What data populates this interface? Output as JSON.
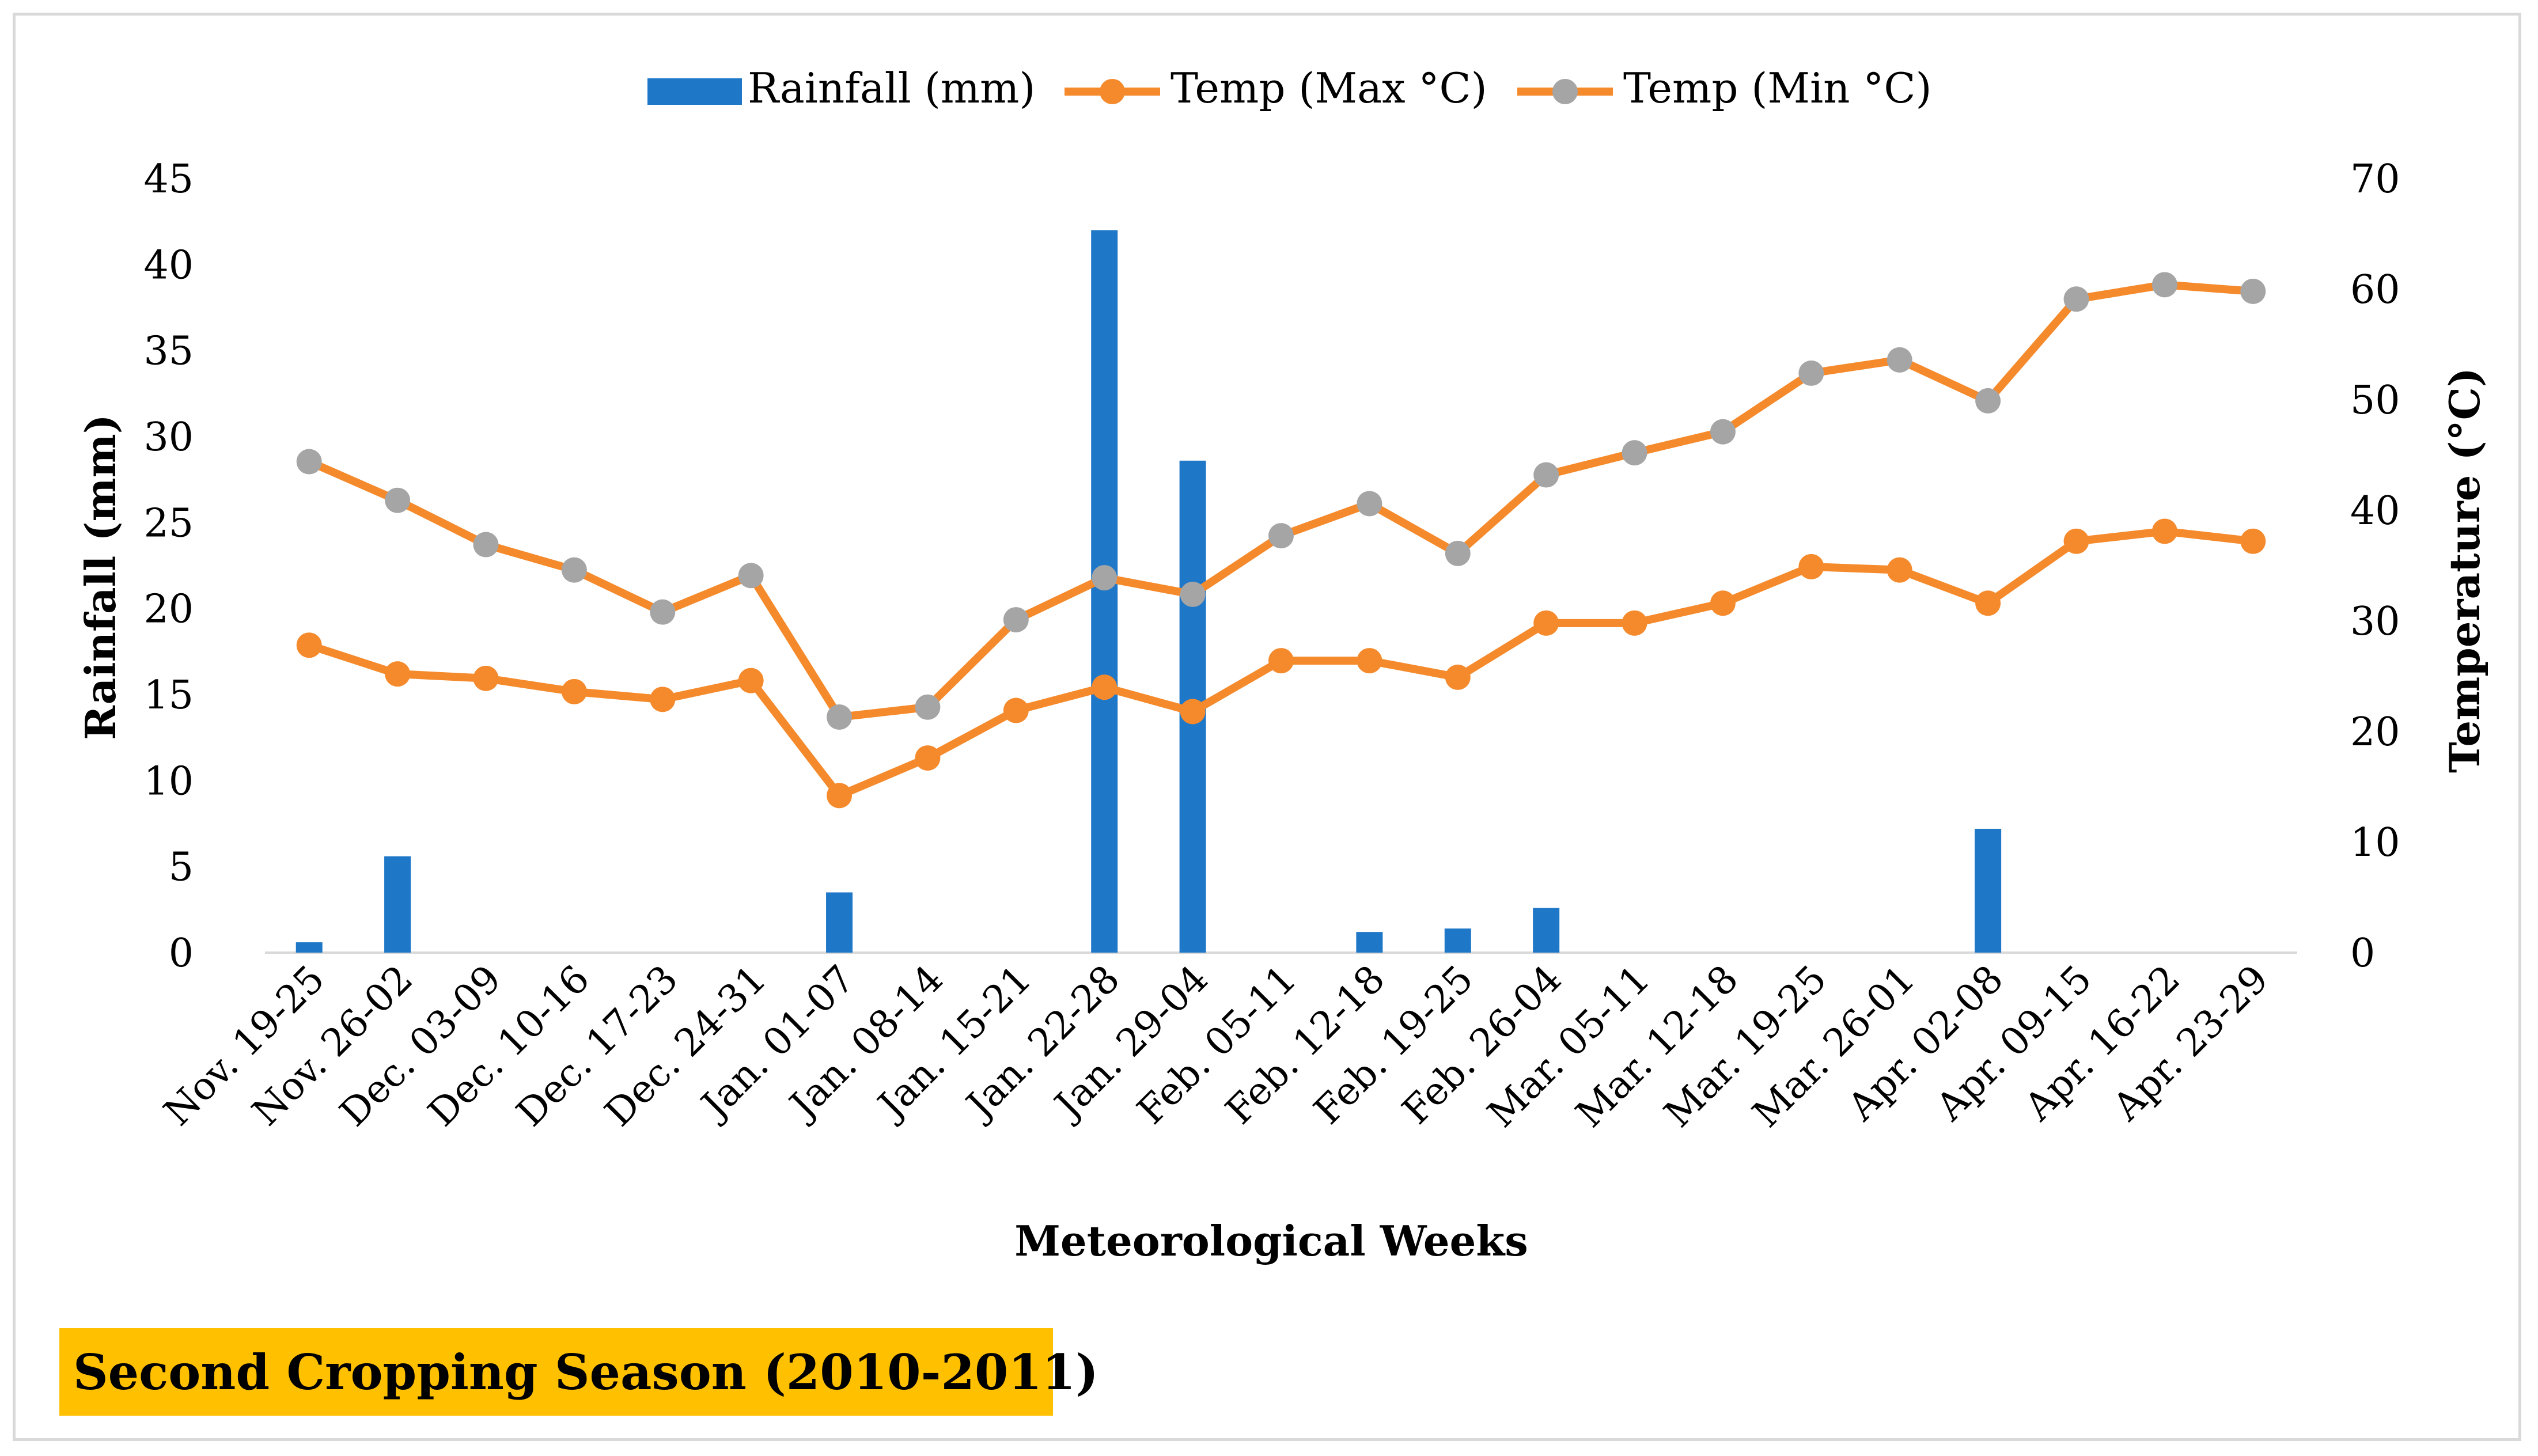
{
  "colors": {
    "rainfall": "#1f77c8",
    "max_line": "#f58a2c",
    "min_marker": "#a5a5a5",
    "max_marker": "#f58a2c",
    "axis": "#d9d9d9",
    "season_bg": "#ffc000"
  },
  "season_label": "Second Cropping Season (2010-2011)",
  "chart_data": {
    "type": "bar",
    "title": "",
    "xlabel": "Meteorological Weeks",
    "ylabel": "Rainfall (mm)",
    "y2label": "Temperature (°C)",
    "ylim": [
      0,
      45
    ],
    "y2lim": [
      0,
      70
    ],
    "yticks": [
      "0",
      "5",
      "10",
      "15",
      "20",
      "25",
      "30",
      "35",
      "40",
      "45"
    ],
    "y2ticks": [
      "0",
      "10",
      "20",
      "30",
      "40",
      "50",
      "60",
      "70"
    ],
    "legend_position": "top",
    "categories": [
      "Nov. 19-25",
      "Nov. 26-02",
      "Dec. 03-09",
      "Dec. 10-16",
      "Dec. 17-23",
      "Dec. 24-31",
      "Jan. 01-07",
      "Jan. 08-14",
      "Jan. 15-21",
      "Jan. 22-28",
      "Jan. 29-04",
      "Feb. 05-11",
      "Feb. 12-18",
      "Feb. 19-25",
      "Feb. 26-04",
      "Mar. 05-11",
      "Mar. 12-18",
      "Mar. 19-25",
      "Mar. 26-01",
      "Apr. 02-08",
      "Apr. 09-15",
      "Apr. 16-22",
      "Apr. 23-29"
    ],
    "series": [
      {
        "name": "Rainfall (mm)",
        "type": "bar",
        "axis": "left",
        "values": [
          0.6,
          5.6,
          0,
          0,
          0,
          0,
          3.5,
          0,
          0,
          42,
          28.6,
          0,
          1.2,
          1.4,
          2.6,
          0,
          0,
          0,
          0,
          7.2,
          0,
          0,
          0
        ]
      },
      {
        "name": "Temp (Max °C)",
        "type": "line",
        "axis": "right",
        "values": [
          27.8,
          25.2,
          24.8,
          23.6,
          22.9,
          24.6,
          14.2,
          17.6,
          21.9,
          24,
          21.8,
          26.4,
          26.4,
          24.9,
          29.8,
          29.8,
          31.6,
          34.9,
          34.6,
          31.6,
          37.2,
          38.1,
          37.2
        ]
      },
      {
        "name": "Temp (Min °C)",
        "type": "line",
        "axis": "right",
        "values": [
          44.4,
          40.9,
          36.9,
          34.6,
          30.8,
          34.1,
          21.3,
          22.2,
          30.1,
          33.9,
          32.4,
          37.7,
          40.6,
          36.1,
          43.2,
          45.2,
          47.1,
          52.4,
          53.6,
          49.9,
          59.1,
          60.4,
          59.8
        ]
      }
    ]
  }
}
